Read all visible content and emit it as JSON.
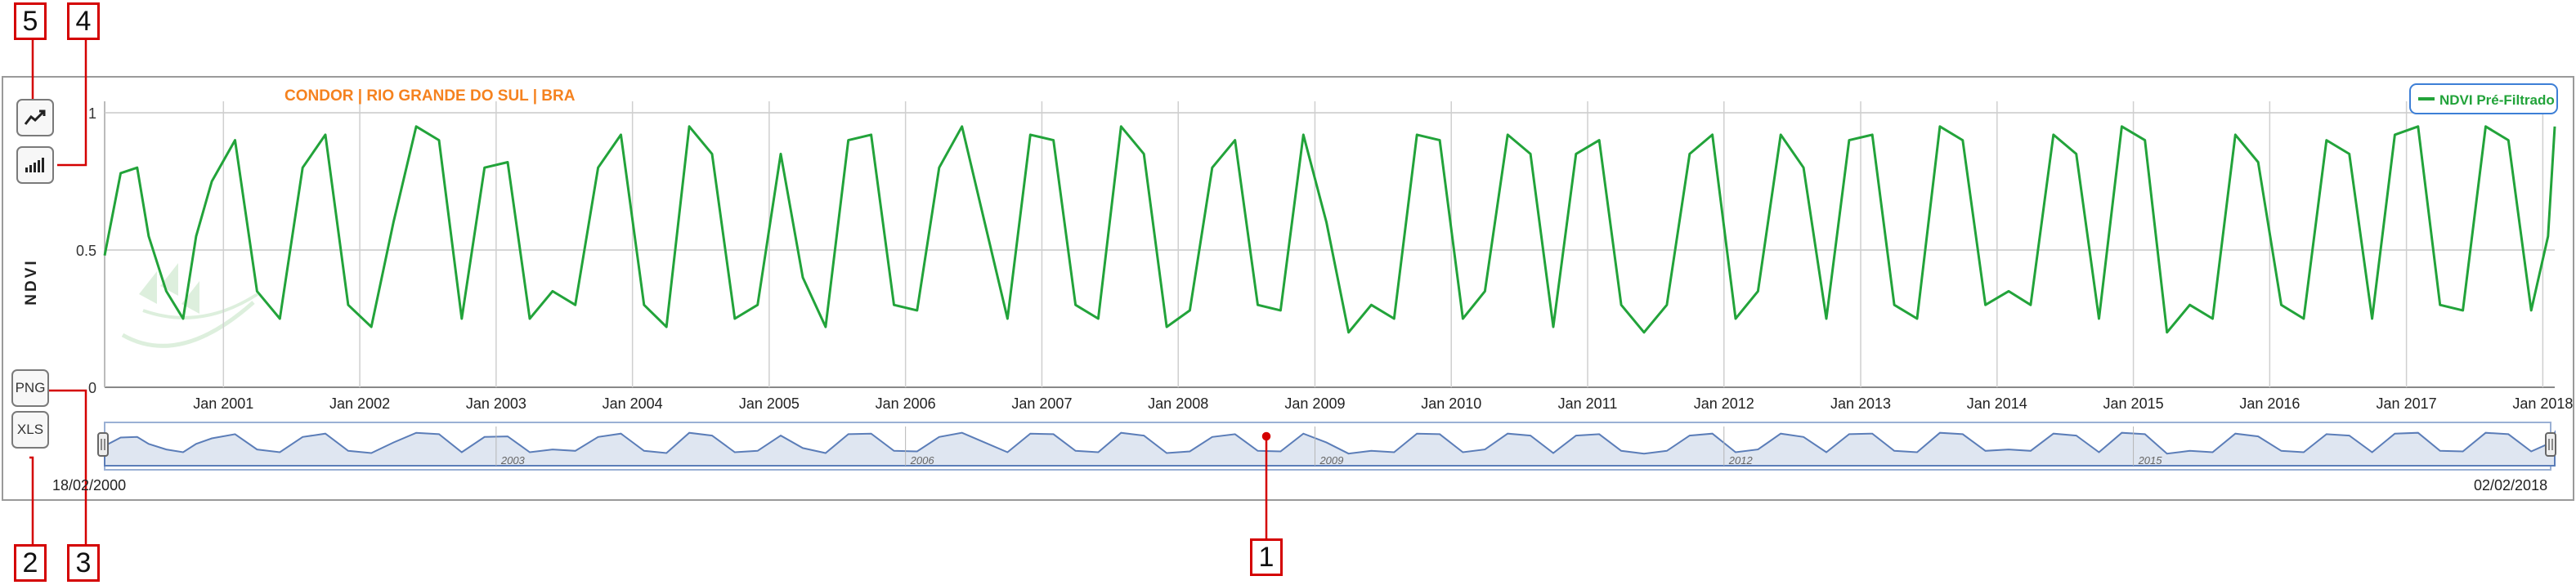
{
  "title": "CONDOR | RIO GRANDE DO SUL | BRA",
  "colors": {
    "series": "#22a33a",
    "title": "#f5821f",
    "navigator_line": "#5b7db8",
    "callout": "#d40000"
  },
  "toolbar": {
    "line_chart_icon": "line-chart-icon",
    "bar_chart_icon": "bar-chart-icon",
    "png_label": "PNG",
    "xls_label": "XLS"
  },
  "callouts": [
    "1",
    "2",
    "3",
    "4",
    "5"
  ],
  "navigator": {
    "start_date": "18/02/2000",
    "end_date": "02/02/2018",
    "labels": [
      "2003",
      "2006",
      "2009",
      "2012",
      "2015"
    ]
  },
  "chart_data": {
    "type": "line",
    "title": "CONDOR | RIO GRANDE DO SUL | BRA",
    "ylabel": "NDVI",
    "xlabel": "",
    "ylim": [
      0,
      1
    ],
    "yticks": [
      "0",
      "0.5",
      "1"
    ],
    "xlim": [
      "2000-02-18",
      "2018-02-02"
    ],
    "xticks": [
      "Jan 2001",
      "Jan 2002",
      "Jan 2003",
      "Jan 2004",
      "Jan 2005",
      "Jan 2006",
      "Jan 2007",
      "Jan 2008",
      "Jan 2009",
      "Jan 2010",
      "Jan 2011",
      "Jan 2012",
      "Jan 2013",
      "Jan 2014",
      "Jan 2015",
      "Jan 2016",
      "Jan 2017",
      "Jan 2018"
    ],
    "grid": true,
    "legend": "top-right",
    "series": [
      {
        "name": "NDVI Pré-Filtrado",
        "x": [
          "2000-02-18",
          "2000-04-01",
          "2000-05-15",
          "2000-06-15",
          "2000-08-01",
          "2000-09-15",
          "2000-10-20",
          "2000-12-01",
          "2001-02-01",
          "2001-04-01",
          "2001-06-01",
          "2001-08-01",
          "2001-10-01",
          "2001-12-01",
          "2002-02-01",
          "2002-04-01",
          "2002-06-01",
          "2002-08-01",
          "2002-10-01",
          "2002-12-01",
          "2003-02-01",
          "2003-04-01",
          "2003-06-01",
          "2003-08-01",
          "2003-10-01",
          "2003-12-01",
          "2004-02-01",
          "2004-04-01",
          "2004-06-01",
          "2004-08-01",
          "2004-10-01",
          "2004-12-01",
          "2005-02-01",
          "2005-04-01",
          "2005-06-01",
          "2005-08-01",
          "2005-10-01",
          "2005-12-01",
          "2006-02-01",
          "2006-04-01",
          "2006-06-01",
          "2006-08-01",
          "2006-10-01",
          "2006-12-01",
          "2007-02-01",
          "2007-04-01",
          "2007-06-01",
          "2007-08-01",
          "2007-10-01",
          "2007-12-01",
          "2008-02-01",
          "2008-04-01",
          "2008-06-01",
          "2008-08-01",
          "2008-10-01",
          "2008-12-01",
          "2009-02-01",
          "2009-04-01",
          "2009-06-01",
          "2009-08-01",
          "2009-10-01",
          "2009-12-01",
          "2010-02-01",
          "2010-04-01",
          "2010-06-01",
          "2010-08-01",
          "2010-10-01",
          "2010-12-01",
          "2011-02-01",
          "2011-04-01",
          "2011-06-01",
          "2011-08-01",
          "2011-10-01",
          "2011-12-01",
          "2012-02-01",
          "2012-04-01",
          "2012-06-01",
          "2012-08-01",
          "2012-10-01",
          "2012-12-01",
          "2013-02-01",
          "2013-04-01",
          "2013-06-01",
          "2013-08-01",
          "2013-10-01",
          "2013-12-01",
          "2014-02-01",
          "2014-04-01",
          "2014-06-01",
          "2014-08-01",
          "2014-10-01",
          "2014-12-01",
          "2015-02-01",
          "2015-04-01",
          "2015-06-01",
          "2015-08-01",
          "2015-10-01",
          "2015-12-01",
          "2016-02-01",
          "2016-04-01",
          "2016-06-01",
          "2016-08-01",
          "2016-10-01",
          "2016-12-01",
          "2017-02-01",
          "2017-04-01",
          "2017-06-01",
          "2017-08-01",
          "2017-10-01",
          "2017-12-01",
          "2018-01-15",
          "2018-02-02"
        ],
        "y": [
          0.48,
          0.78,
          0.8,
          0.55,
          0.35,
          0.25,
          0.55,
          0.75,
          0.9,
          0.35,
          0.25,
          0.8,
          0.92,
          0.3,
          0.22,
          0.6,
          0.95,
          0.9,
          0.25,
          0.8,
          0.82,
          0.25,
          0.35,
          0.3,
          0.8,
          0.92,
          0.3,
          0.22,
          0.95,
          0.85,
          0.25,
          0.3,
          0.85,
          0.4,
          0.22,
          0.9,
          0.92,
          0.3,
          0.28,
          0.8,
          0.95,
          0.6,
          0.25,
          0.92,
          0.9,
          0.3,
          0.25,
          0.95,
          0.85,
          0.22,
          0.28,
          0.8,
          0.9,
          0.3,
          0.28,
          0.92,
          0.6,
          0.2,
          0.3,
          0.25,
          0.92,
          0.9,
          0.25,
          0.35,
          0.92,
          0.85,
          0.22,
          0.85,
          0.9,
          0.3,
          0.2,
          0.3,
          0.85,
          0.92,
          0.25,
          0.35,
          0.92,
          0.8,
          0.25,
          0.9,
          0.92,
          0.3,
          0.25,
          0.95,
          0.9,
          0.3,
          0.35,
          0.3,
          0.92,
          0.85,
          0.25,
          0.95,
          0.9,
          0.2,
          0.3,
          0.25,
          0.92,
          0.82,
          0.3,
          0.25,
          0.9,
          0.85,
          0.25,
          0.92,
          0.95,
          0.3,
          0.28,
          0.95,
          0.9,
          0.28,
          0.55,
          0.95
        ]
      }
    ]
  }
}
